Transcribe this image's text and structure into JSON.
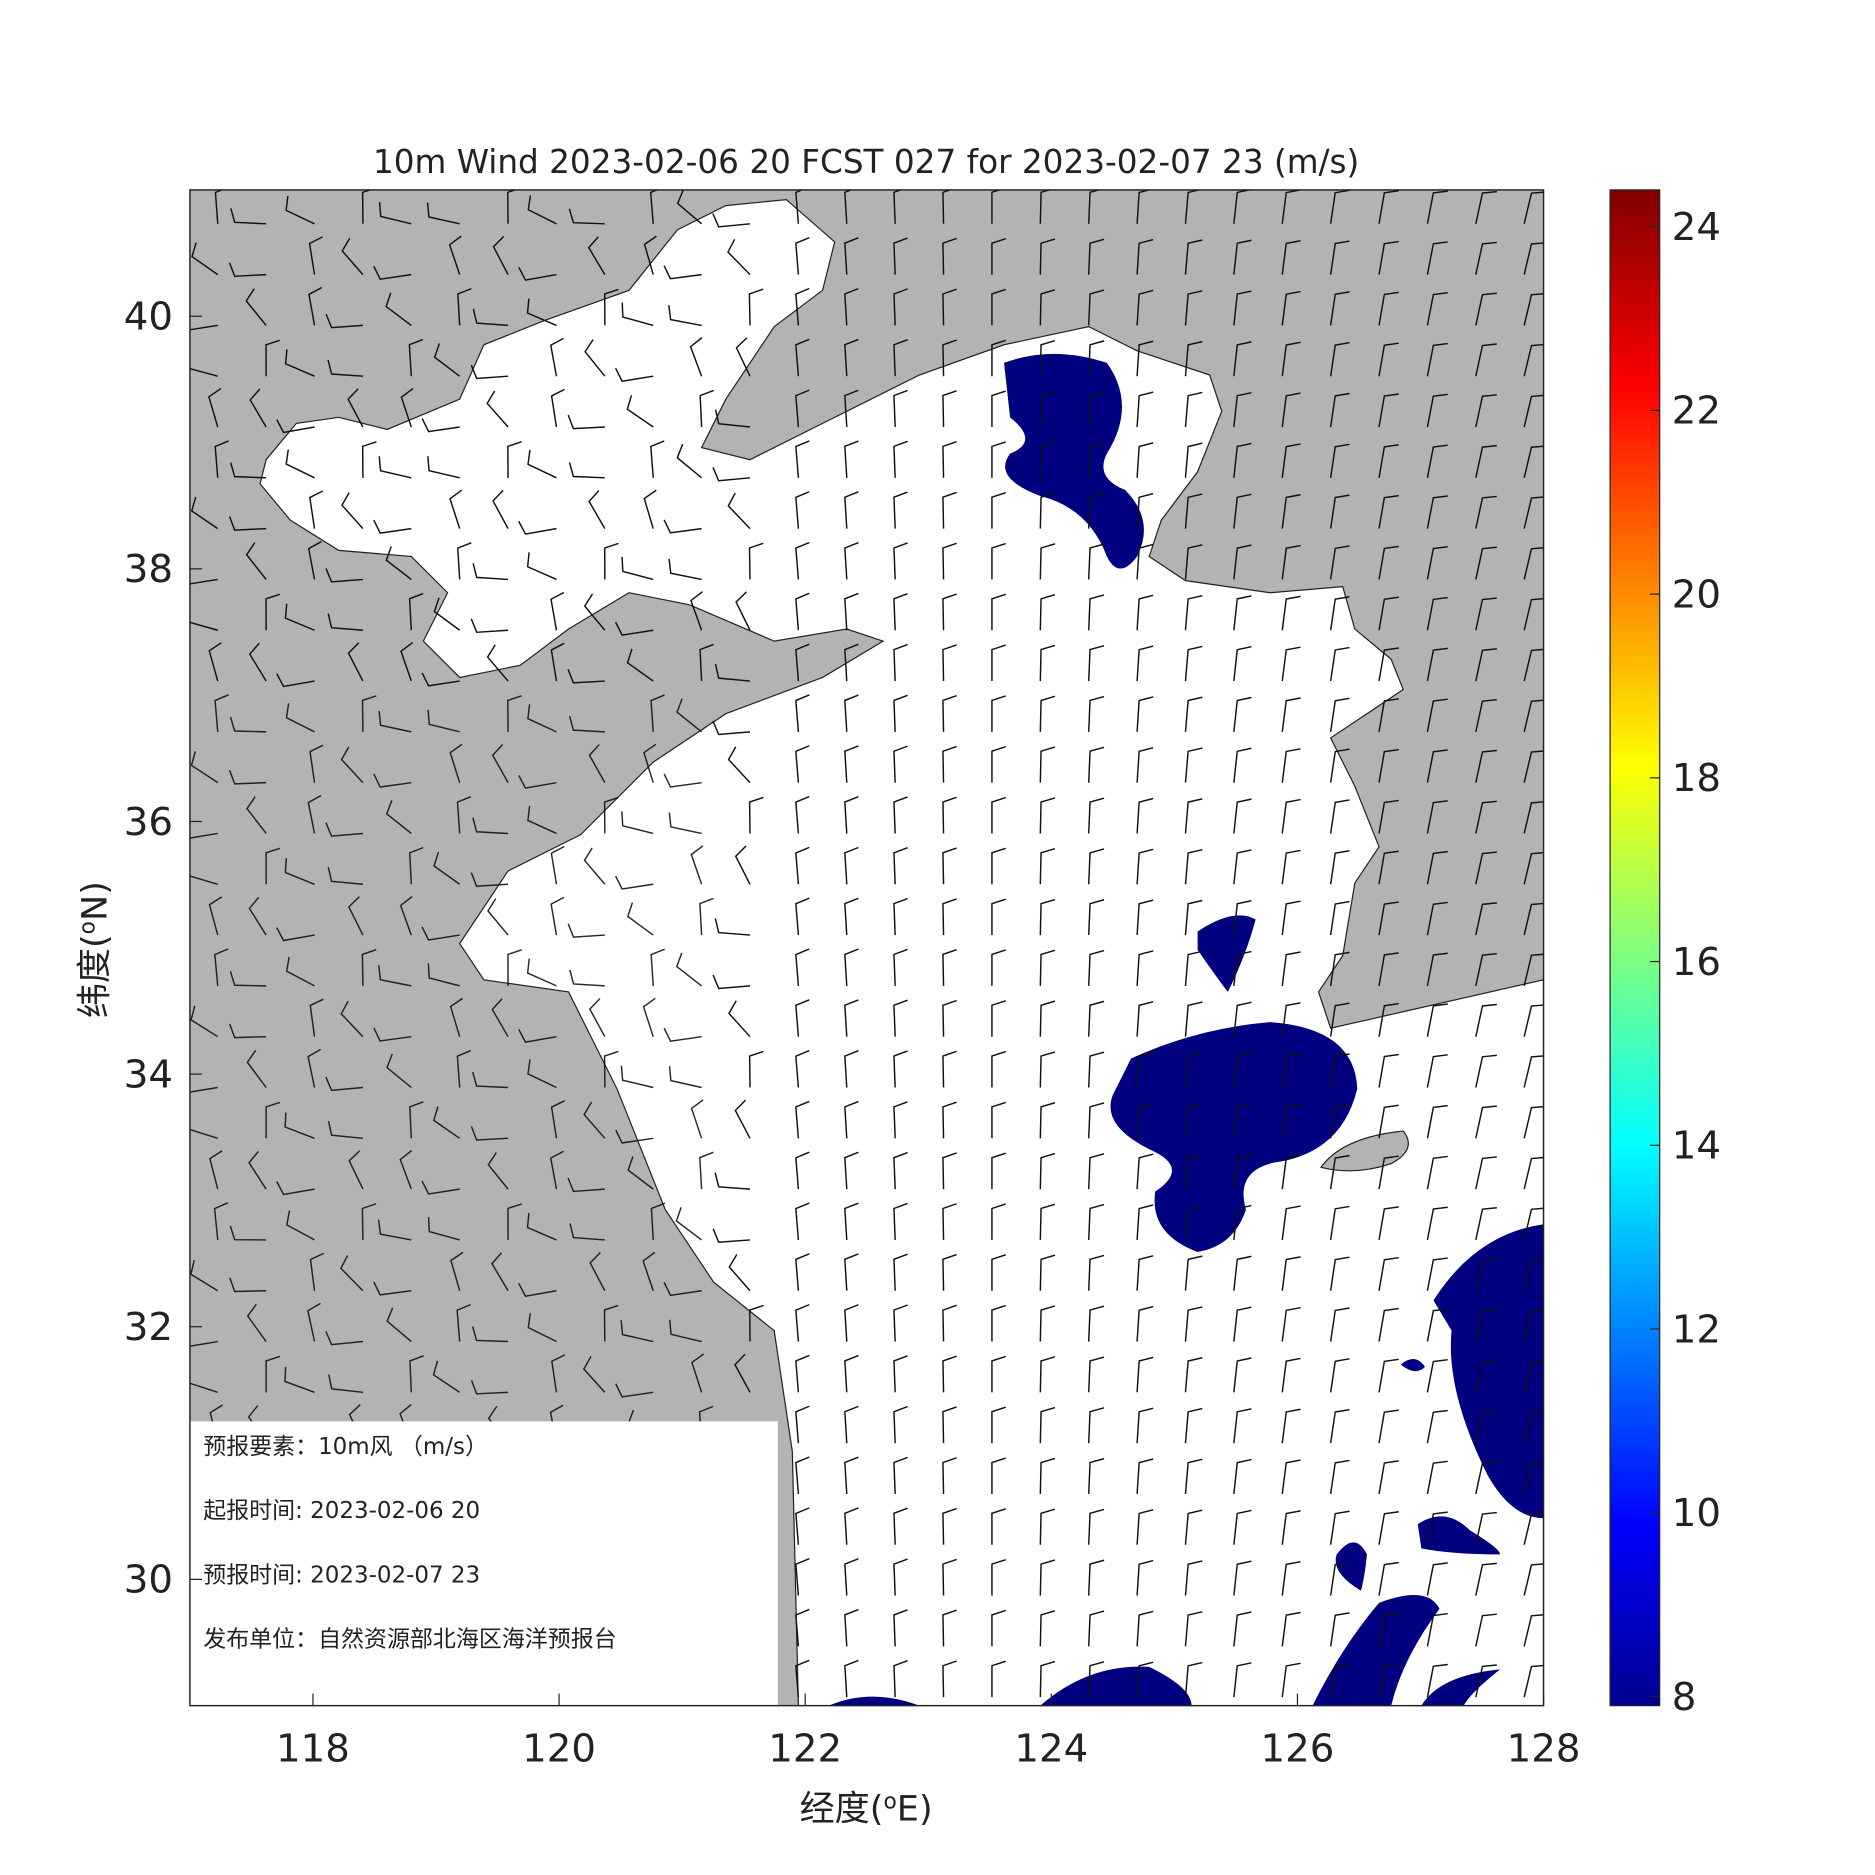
{
  "title": "10m Wind 2023-02-06 20 FCST 027 for 2023-02-07 23 (m/s)",
  "x_axis": {
    "label": [
      "经度(",
      "o",
      "E)"
    ],
    "lim": [
      117,
      128
    ],
    "ticks": [
      118,
      120,
      122,
      124,
      126,
      128
    ]
  },
  "y_axis": {
    "label": [
      "纬度(",
      "o",
      "N)"
    ],
    "lim": [
      29,
      41
    ],
    "ticks": [
      30,
      32,
      34,
      36,
      38,
      40
    ]
  },
  "colorbar": {
    "lim": [
      7.9,
      24.4
    ],
    "ticks": [
      8,
      10,
      12,
      14,
      16,
      18,
      20,
      22,
      24
    ]
  },
  "info": [
    "预报要素：10m风 （m/s）",
    "起报时间: 2023-02-06 20",
    "预报时间: 2023-02-07 23",
    "发布单位：自然资源部北海区海洋预报台"
  ]
}
